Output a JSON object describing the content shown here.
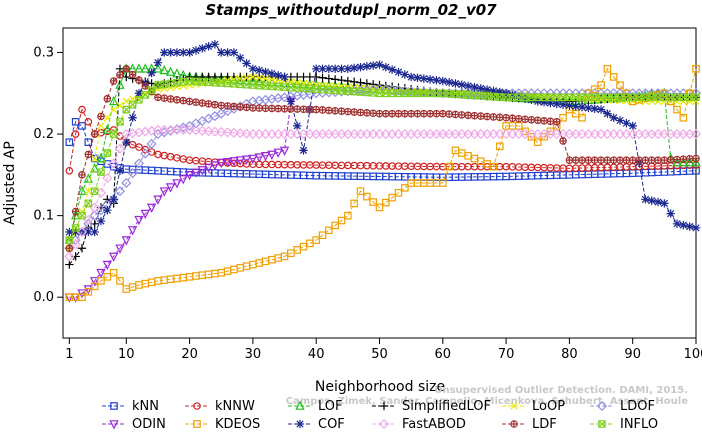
{
  "chart_data": {
    "type": "line",
    "title": "Stamps_withoutdupl_norm_02_v07",
    "xlabel": "Neighborhood size",
    "ylabel": "Adjusted AP",
    "xlim": [
      0,
      100
    ],
    "ylim": [
      -0.05,
      0.33
    ],
    "xticks": [
      1,
      10,
      20,
      30,
      40,
      50,
      60,
      70,
      80,
      90,
      100
    ],
    "yticks": [
      0.0,
      0.1,
      0.2,
      0.3
    ],
    "grid": false,
    "legend_position": "bottom",
    "watermark": [
      "Campos, Zimek, Sander, Campello, Micenkova, Schubert, Assent, Houle",
      "Unsupervised Outlier Detection. DAMI, 2015."
    ],
    "series": [
      {
        "name": "kNN",
        "color": "#1f3fd0",
        "marker": "square",
        "x": [
          1,
          2,
          3,
          5,
          8,
          10,
          15,
          20,
          25,
          30,
          40,
          50,
          60,
          70,
          80,
          90,
          100
        ],
        "y": [
          0.19,
          0.215,
          0.21,
          0.17,
          0.16,
          0.157,
          0.155,
          0.153,
          0.152,
          0.151,
          0.149,
          0.148,
          0.147,
          0.148,
          0.15,
          0.152,
          0.155
        ]
      },
      {
        "name": "kNNW",
        "color": "#d02020",
        "marker": "circle",
        "x": [
          1,
          2,
          3,
          5,
          8,
          10,
          15,
          20,
          25,
          30,
          40,
          50,
          60,
          70,
          80,
          90,
          100
        ],
        "y": [
          0.155,
          0.2,
          0.23,
          0.2,
          0.205,
          0.19,
          0.175,
          0.168,
          0.165,
          0.163,
          0.162,
          0.161,
          0.16,
          0.16,
          0.158,
          0.16,
          0.162
        ]
      },
      {
        "name": "LOF",
        "color": "#20c020",
        "marker": "triangle",
        "x": [
          1,
          2,
          3,
          4,
          6,
          8,
          10,
          15,
          20,
          30,
          40,
          50,
          60,
          70,
          80,
          90,
          95,
          96,
          97,
          100
        ],
        "y": [
          0.07,
          0.1,
          0.13,
          0.145,
          0.17,
          0.24,
          0.28,
          0.28,
          0.27,
          0.265,
          0.26,
          0.255,
          0.25,
          0.245,
          0.24,
          0.245,
          0.25,
          0.17,
          0.165,
          0.165
        ]
      },
      {
        "name": "SimplifiedLOF",
        "color": "#000000",
        "marker": "plus",
        "x": [
          1,
          2,
          3,
          4,
          5,
          6,
          7,
          8,
          9,
          10,
          15,
          20,
          30,
          40,
          50,
          60,
          70,
          80,
          90,
          100
        ],
        "y": [
          0.04,
          0.05,
          0.06,
          0.085,
          0.09,
          0.11,
          0.12,
          0.115,
          0.28,
          0.27,
          0.26,
          0.27,
          0.27,
          0.27,
          0.26,
          0.25,
          0.245,
          0.24,
          0.245,
          0.245
        ]
      },
      {
        "name": "LoOP",
        "color": "#e8e800",
        "marker": "x",
        "x": [
          1,
          2,
          4,
          6,
          8,
          10,
          15,
          20,
          30,
          40,
          50,
          60,
          70,
          80,
          90,
          100
        ],
        "y": [
          0.06,
          0.08,
          0.13,
          0.21,
          0.23,
          0.24,
          0.255,
          0.26,
          0.27,
          0.26,
          0.255,
          0.25,
          0.25,
          0.245,
          0.24,
          0.24
        ]
      },
      {
        "name": "LDOF",
        "color": "#9090e0",
        "marker": "diamond",
        "x": [
          1,
          3,
          5,
          8,
          10,
          15,
          20,
          30,
          40,
          50,
          60,
          70,
          80,
          90,
          100
        ],
        "y": [
          0.06,
          0.08,
          0.1,
          0.12,
          0.14,
          0.2,
          0.21,
          0.24,
          0.25,
          0.255,
          0.25,
          0.25,
          0.25,
          0.25,
          0.25
        ]
      },
      {
        "name": "ODIN",
        "color": "#9a28d8",
        "marker": "triangle-down",
        "x": [
          1,
          2,
          4,
          6,
          8,
          10,
          12,
          14,
          16,
          18,
          20,
          25,
          30,
          33,
          35,
          36
        ],
        "y": [
          0.0,
          0.0,
          0.01,
          0.03,
          0.05,
          0.07,
          0.095,
          0.11,
          0.13,
          0.14,
          0.15,
          0.165,
          0.17,
          0.175,
          0.18,
          0.24
        ]
      },
      {
        "name": "KDEOS",
        "color": "#f0a000",
        "marker": "square",
        "x": [
          1,
          3,
          6,
          8,
          10,
          12,
          15,
          20,
          25,
          30,
          35,
          40,
          45,
          47,
          50,
          55,
          60,
          62,
          65,
          68,
          70,
          72,
          75,
          78,
          80,
          82,
          83,
          85,
          86,
          88,
          90,
          95,
          98,
          100
        ],
        "y": [
          0.0,
          0.0,
          0.02,
          0.03,
          0.01,
          0.015,
          0.02,
          0.025,
          0.03,
          0.04,
          0.05,
          0.07,
          0.1,
          0.13,
          0.11,
          0.14,
          0.14,
          0.18,
          0.17,
          0.16,
          0.21,
          0.21,
          0.19,
          0.21,
          0.23,
          0.22,
          0.25,
          0.26,
          0.28,
          0.26,
          0.24,
          0.25,
          0.22,
          0.28
        ]
      },
      {
        "name": "COF",
        "color": "#1a2890",
        "marker": "asterisk",
        "x": [
          1,
          5,
          8,
          10,
          12,
          14,
          16,
          18,
          20,
          22,
          24,
          25,
          27,
          30,
          35,
          38,
          40,
          45,
          50,
          55,
          60,
          70,
          75,
          80,
          85,
          87,
          90,
          92,
          95,
          97,
          100
        ],
        "y": [
          0.08,
          0.08,
          0.12,
          0.19,
          0.25,
          0.275,
          0.3,
          0.3,
          0.3,
          0.305,
          0.31,
          0.3,
          0.3,
          0.28,
          0.27,
          0.18,
          0.28,
          0.28,
          0.285,
          0.27,
          0.265,
          0.25,
          0.24,
          0.235,
          0.23,
          0.22,
          0.21,
          0.12,
          0.115,
          0.09,
          0.085
        ]
      },
      {
        "name": "FastABOD",
        "color": "#f0a8e8",
        "marker": "diamond",
        "x": [
          1,
          5,
          10,
          15,
          20,
          30,
          40,
          50,
          60,
          70,
          80,
          90,
          100
        ],
        "y": [
          0.05,
          0.11,
          0.2,
          0.205,
          0.205,
          0.2,
          0.2,
          0.2,
          0.2,
          0.2,
          0.2,
          0.2,
          0.2
        ]
      },
      {
        "name": "LDF",
        "color": "#a03030",
        "marker": "circle-plus",
        "x": [
          1,
          3,
          5,
          8,
          10,
          15,
          20,
          25,
          30,
          40,
          50,
          60,
          70,
          78,
          80,
          85,
          90,
          95,
          100
        ],
        "y": [
          0.06,
          0.15,
          0.2,
          0.265,
          0.28,
          0.245,
          0.24,
          0.235,
          0.232,
          0.23,
          0.225,
          0.225,
          0.22,
          0.215,
          0.168,
          0.168,
          0.168,
          0.168,
          0.17
        ]
      },
      {
        "name": "INFLO",
        "color": "#80d020",
        "marker": "boxed-x",
        "x": [
          1,
          3,
          5,
          8,
          10,
          15,
          20,
          30,
          40,
          50,
          60,
          70,
          80,
          90,
          100
        ],
        "y": [
          0.07,
          0.1,
          0.13,
          0.2,
          0.23,
          0.26,
          0.265,
          0.26,
          0.255,
          0.25,
          0.25,
          0.245,
          0.245,
          0.245,
          0.245
        ]
      }
    ]
  }
}
